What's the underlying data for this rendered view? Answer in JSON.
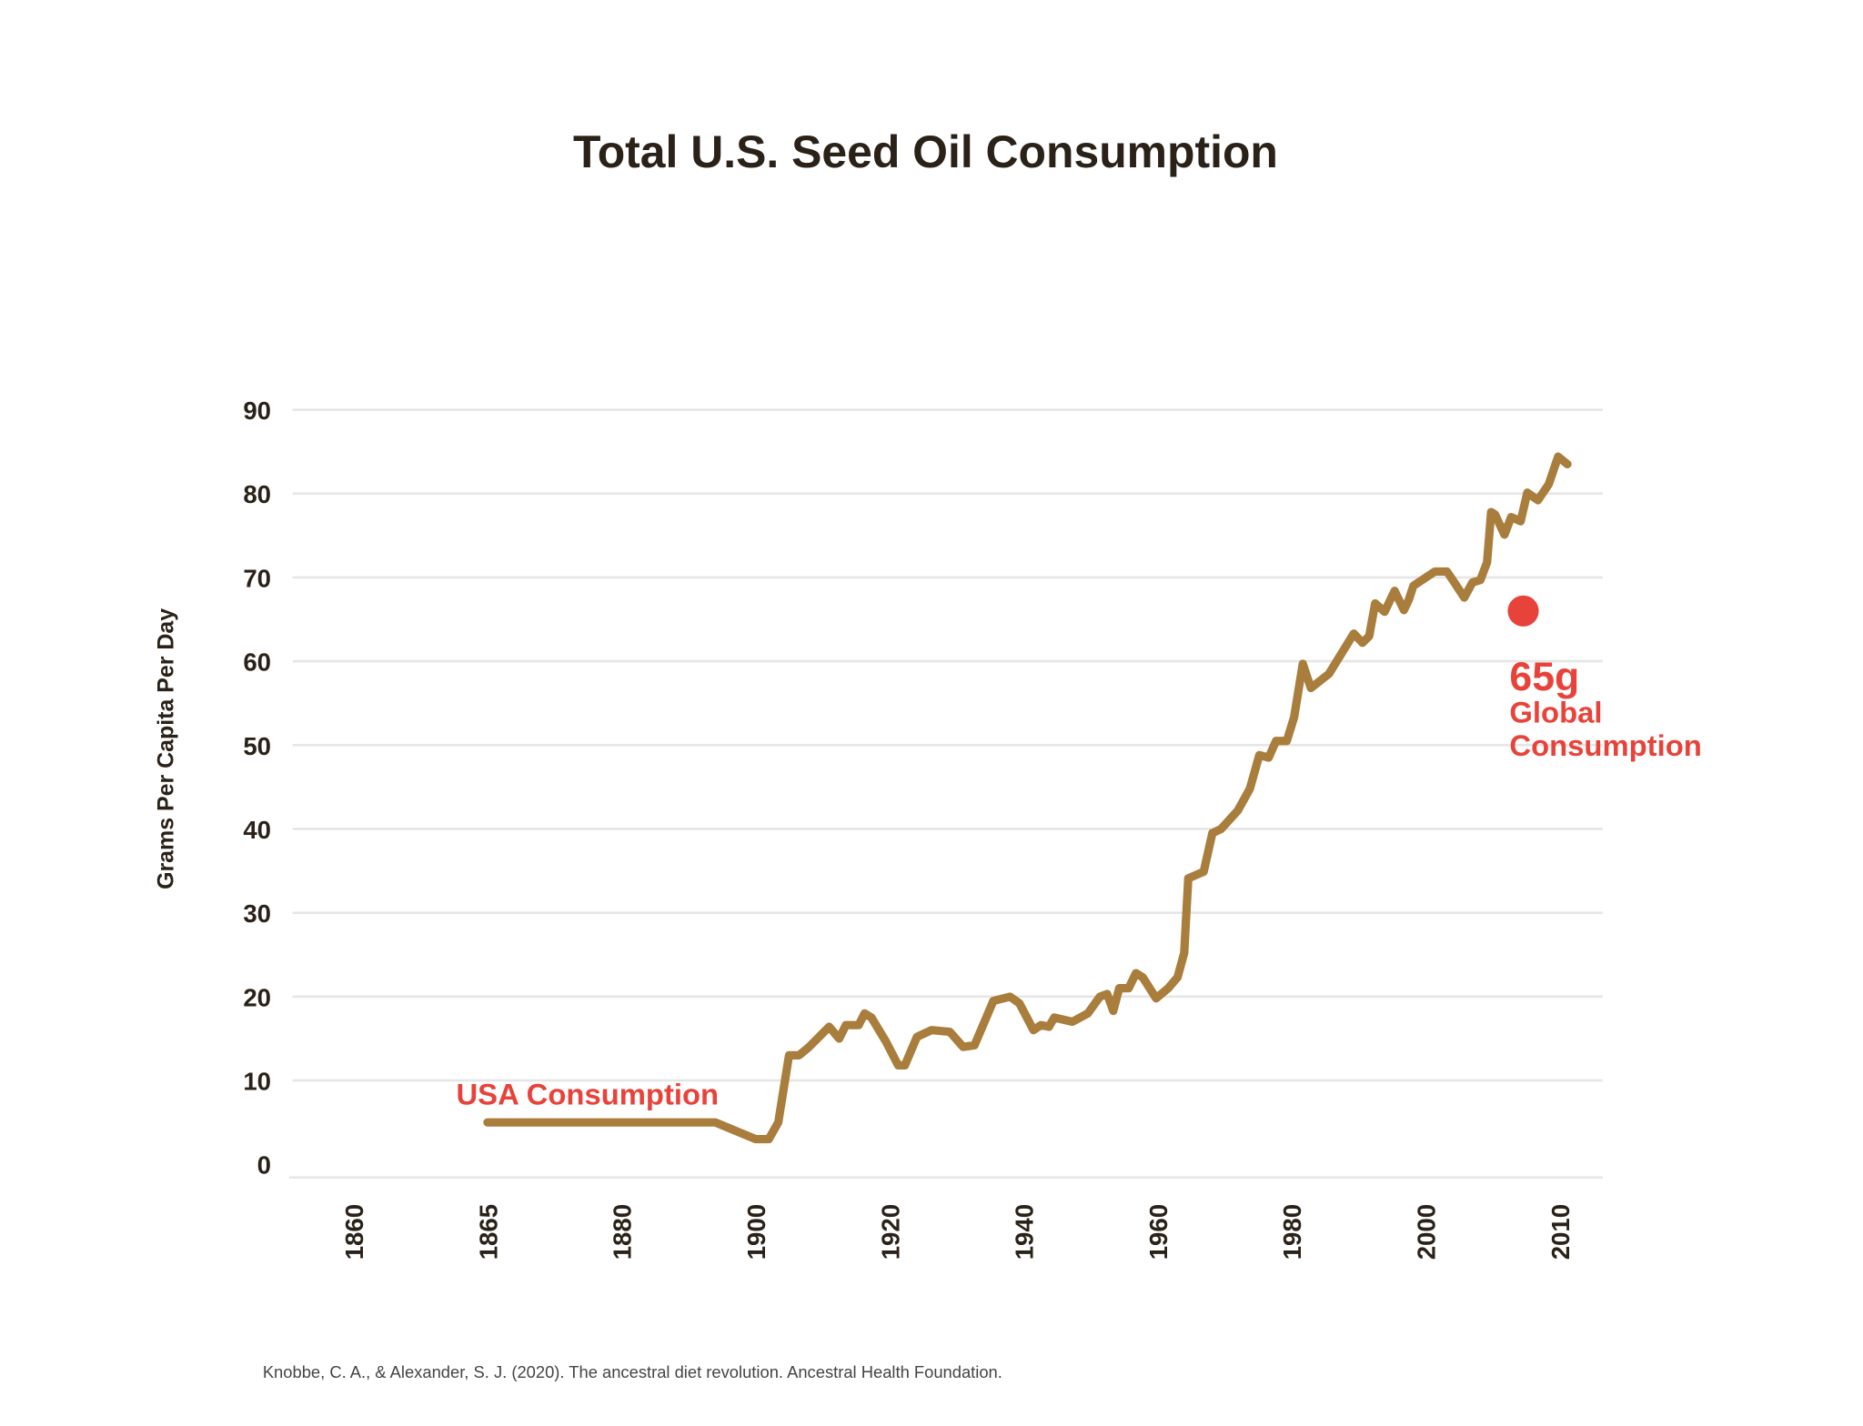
{
  "chart_data": {
    "type": "line",
    "title": "Total U.S. Seed Oil Consumption",
    "xlabel": "",
    "ylabel": "Grams Per Capita Per Day",
    "ylim": [
      0,
      90
    ],
    "yticks": [
      0,
      10,
      20,
      30,
      40,
      50,
      60,
      70,
      80,
      90
    ],
    "xtick_labels": [
      "1860",
      "1865",
      "1880",
      "1900",
      "1920",
      "1940",
      "1960",
      "1980",
      "2000",
      "2010"
    ],
    "grid": true,
    "colors": {
      "line": "#a97d3c",
      "annotation": "#e8433a",
      "text": "#2a2118"
    },
    "series": [
      {
        "name": "USA Consumption",
        "x": [
          1865,
          1894,
          1900,
          1902,
          1903.4,
          1905,
          1906.5,
          1908,
          1911,
          1912.5,
          1913.5,
          1915.4,
          1916.3,
          1917.3,
          1919.5,
          1921.3,
          1922.3,
          1924.1,
          1926.3,
          1929,
          1931,
          1932.7,
          1935.5,
          1938,
          1939.4,
          1941.5,
          1942.6,
          1943.8,
          1944.6,
          1947.3,
          1949.6,
          1951.4,
          1952.5,
          1953.4,
          1954.3,
          1955.7,
          1956.8,
          1957.8,
          1959.8,
          1961.6,
          1963,
          1964,
          1964.6,
          1966.9,
          1968.2,
          1969.5,
          1972,
          1973.8,
          1975.2,
          1976.6,
          1977.7,
          1979.3,
          1980.4,
          1981.7,
          1982.9,
          1985.6,
          1989.3,
          1990.6,
          1991.6,
          1992.5,
          1993.9,
          1995.4,
          1996.8,
          1997.5,
          1998.2,
          2000.7,
          2001.6,
          2002.2,
          2002.9,
          2003.5,
          2004.1,
          2004.6,
          2004.9,
          2005.2,
          2005.9,
          2006.4,
          2007.1,
          2007.6,
          2008.4,
          2009.2,
          2009.9,
          2010.6
        ],
        "y": [
          5,
          5,
          3,
          3,
          5,
          13,
          13,
          14,
          16.4,
          15,
          16.6,
          16.6,
          18,
          17.5,
          14.6,
          11.8,
          11.8,
          15.2,
          16,
          15.8,
          14,
          14.2,
          19.5,
          20,
          19.2,
          16,
          16.6,
          16.4,
          17.5,
          17,
          18,
          20,
          20.3,
          18.3,
          21,
          21,
          22.8,
          22.3,
          19.8,
          21,
          22.3,
          25.2,
          34.1,
          34.9,
          39.5,
          40,
          42.2,
          44.8,
          48.8,
          48.5,
          50.5,
          50.5,
          53.3,
          59.7,
          56.8,
          58.5,
          63.3,
          62.2,
          63,
          66.9,
          65.9,
          68.4,
          66.1,
          67.3,
          69,
          70.7,
          70.7,
          69.3,
          67.6,
          69.4,
          69.7,
          71.8,
          77.8,
          77.5,
          75.1,
          77.2,
          76.7,
          80.1,
          79.2,
          81.1,
          84.4,
          83.5
        ]
      }
    ],
    "annotations": {
      "usa_label": "USA Consumption",
      "global_point": {
        "x": 2007.3,
        "y": 66
      },
      "global_value": "65g",
      "global_line1": "Global",
      "global_line2": "Consumption"
    }
  },
  "citation": "Knobbe, C. A., & Alexander, S. J. (2020). The ancestral diet revolution. Ancestral Health Foundation."
}
